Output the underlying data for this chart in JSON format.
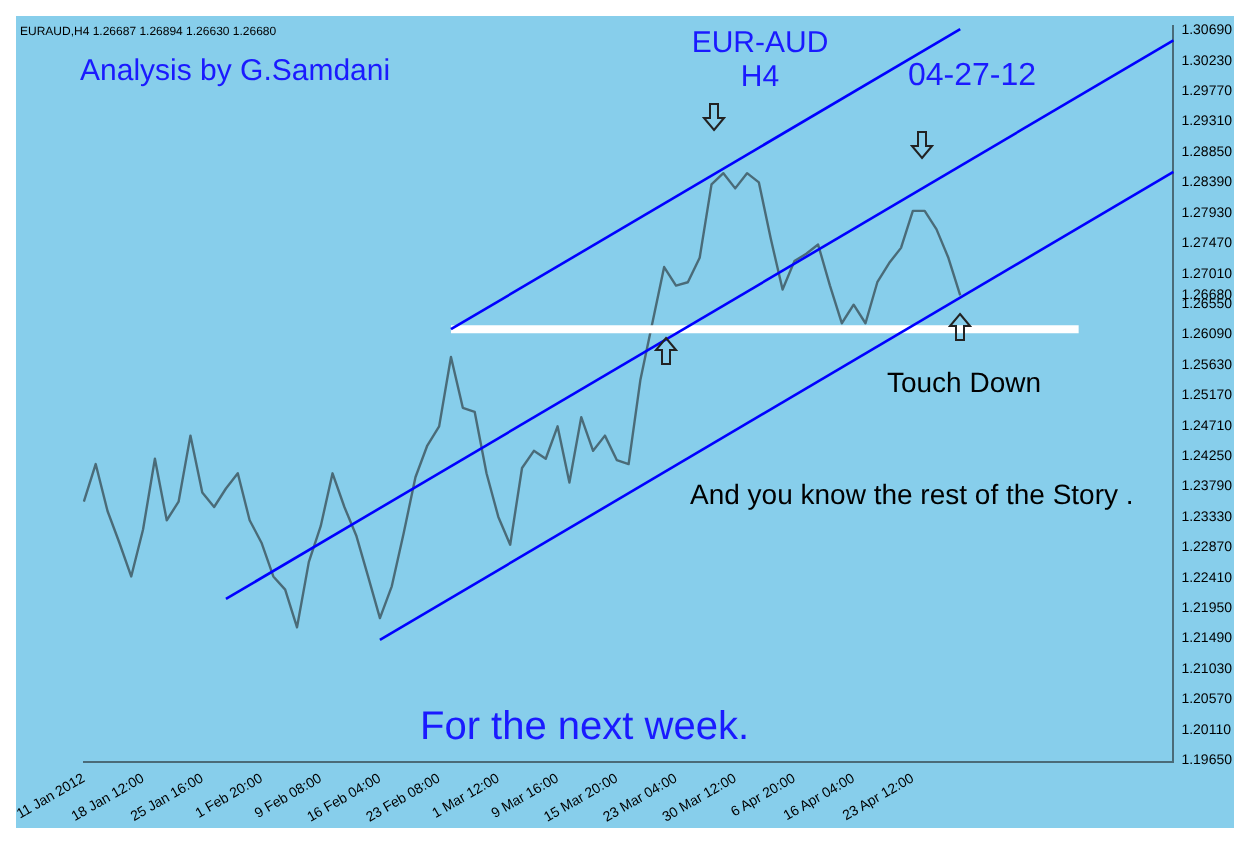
{
  "chart_data": {
    "type": "line",
    "title": "EUR-AUD",
    "subtitle": "H4",
    "annotations": [
      "EURAUD,H4 1.26687 1.26894 1.26630 1.26680",
      "Analysis by G.Samdani",
      "04-27-12",
      "Touch Down",
      "And you know the rest of the Story .",
      "For the next week."
    ],
    "categories": [
      "11 Jan 2012",
      null,
      null,
      null,
      null,
      "18 Jan 12:00",
      null,
      null,
      null,
      null,
      "25 Jan 16:00",
      null,
      null,
      null,
      null,
      "1 Feb 20:00",
      null,
      null,
      null,
      null,
      "9 Feb 08:00",
      null,
      null,
      null,
      null,
      "16 Feb 04:00",
      null,
      null,
      null,
      null,
      "23 Feb 08:00",
      null,
      null,
      null,
      null,
      "1 Mar 12:00",
      null,
      null,
      null,
      null,
      "9 Mar 16:00",
      null,
      null,
      null,
      null,
      "15 Mar 20:00",
      null,
      null,
      null,
      null,
      "23 Mar 04:00",
      null,
      null,
      null,
      null,
      "30 Mar 12:00",
      null,
      null,
      null,
      null,
      "6 Apr 20:00",
      null,
      null,
      null,
      null,
      "16 Apr 04:00",
      null,
      null,
      null,
      null,
      "23 Apr 12:00",
      null,
      null,
      null,
      null,
      null,
      null,
      null,
      null,
      null,
      null,
      null,
      null,
      null,
      null,
      null,
      null,
      null,
      null,
      null,
      null,
      null,
      null
    ],
    "series": [
      {
        "color": "#4a6b78",
        "values": [
          1.2356,
          1.2413,
          1.2342,
          1.2294,
          1.2243,
          1.2314,
          1.2421,
          1.2328,
          1.2356,
          1.2456,
          1.237,
          1.2348,
          1.2376,
          1.2399,
          1.2328,
          1.2294,
          1.2243,
          1.2223,
          1.2166,
          1.2265,
          1.2319,
          1.2399,
          1.2348,
          1.2305,
          1.2243,
          1.218,
          1.2228,
          1.2308,
          1.2393,
          1.2441,
          1.247,
          1.2575,
          1.2498,
          1.2492,
          1.2399,
          1.2333,
          1.2291,
          1.2407,
          1.2433,
          1.2421,
          1.247,
          1.2385,
          1.2484,
          1.2433,
          1.2456,
          1.2419,
          1.2413,
          1.2541,
          1.2626,
          1.2711,
          1.2683,
          1.2688,
          1.2725,
          1.2836,
          1.2853,
          1.283,
          1.2853,
          1.2839,
          1.2754,
          1.2677,
          1.272,
          1.2731,
          1.2745,
          1.2683,
          1.2626,
          1.2654,
          1.2626,
          1.2688,
          1.2717,
          1.274,
          1.2796,
          1.2796,
          1.2768,
          1.2725,
          1.2668,
          null,
          null,
          null,
          null,
          null,
          null,
          null,
          null,
          null,
          null,
          null,
          null,
          null,
          null,
          null,
          null,
          null,
          null
        ]
      },
      {
        "color": "#ffffff",
        "values": [
          null,
          null,
          null,
          null,
          null,
          null,
          null,
          null,
          null,
          null,
          null,
          null,
          null,
          null,
          null,
          null,
          null,
          null,
          null,
          null,
          null,
          null,
          null,
          null,
          null,
          null,
          null,
          null,
          null,
          null,
          null,
          1.2617,
          null,
          null,
          null,
          null,
          null,
          null,
          null,
          null,
          null,
          null,
          null,
          null,
          null,
          null,
          null,
          null,
          null,
          null,
          null,
          null,
          null,
          null,
          null,
          null,
          null,
          null,
          null,
          null,
          null,
          null,
          null,
          null,
          null,
          null,
          null,
          null,
          null,
          null,
          null,
          null,
          null,
          null,
          null,
          null,
          null,
          null,
          null,
          null,
          null,
          null,
          null,
          null,
          1.2617,
          null,
          null,
          null,
          null,
          null,
          null,
          null,
          null
        ]
      },
      {
        "color": "#0000ff",
        "values": [
          null,
          null,
          null,
          null,
          null,
          null,
          null,
          null,
          null,
          null,
          null,
          null,
          null,
          null,
          null,
          null,
          null,
          null,
          null,
          null,
          null,
          null,
          null,
          null,
          null,
          null,
          null,
          null,
          null,
          null,
          null,
          1.2617,
          null,
          null,
          null,
          null,
          null,
          null,
          null,
          null,
          null,
          null,
          null,
          null,
          null,
          null,
          null,
          null,
          null,
          null,
          null,
          null,
          null,
          null,
          null,
          null,
          null,
          null,
          null,
          null,
          null,
          null,
          null,
          null,
          null,
          null,
          null,
          null,
          null,
          null,
          null,
          null,
          null,
          null,
          1.3071,
          null,
          null,
          null,
          null,
          null,
          null,
          null,
          null,
          null,
          null,
          null,
          null,
          null,
          null,
          null,
          null,
          null,
          null
        ]
      },
      {
        "color": "#0000ff",
        "values": [
          null,
          null,
          null,
          null,
          null,
          null,
          null,
          null,
          null,
          null,
          null,
          null,
          1.2209,
          null,
          null,
          null,
          null,
          null,
          null,
          null,
          null,
          null,
          null,
          null,
          null,
          null,
          null,
          null,
          null,
          null,
          null,
          null,
          null,
          null,
          null,
          null,
          null,
          null,
          null,
          null,
          null,
          null,
          null,
          null,
          null,
          null,
          null,
          null,
          null,
          null,
          null,
          null,
          null,
          null,
          null,
          null,
          null,
          null,
          null,
          null,
          null,
          null,
          null,
          null,
          null,
          null,
          null,
          null,
          null,
          null,
          null,
          null,
          null,
          null,
          null,
          null,
          null,
          null,
          null,
          null,
          null,
          null,
          null,
          null,
          null,
          null,
          null,
          null,
          null,
          null,
          null,
          null,
          1.3054
        ]
      },
      {
        "color": "#0000ff",
        "values": [
          null,
          null,
          null,
          null,
          null,
          null,
          null,
          null,
          null,
          null,
          null,
          null,
          null,
          null,
          null,
          null,
          null,
          null,
          null,
          null,
          null,
          null,
          null,
          null,
          null,
          1.2147,
          null,
          null,
          null,
          null,
          null,
          null,
          null,
          null,
          null,
          null,
          null,
          null,
          null,
          null,
          null,
          null,
          null,
          null,
          null,
          null,
          null,
          null,
          null,
          null,
          null,
          null,
          null,
          null,
          null,
          null,
          null,
          null,
          null,
          null,
          null,
          null,
          null,
          null,
          null,
          null,
          null,
          null,
          null,
          null,
          null,
          null,
          null,
          null,
          null,
          null,
          null,
          null,
          null,
          null,
          null,
          null,
          null,
          null,
          null,
          null,
          null,
          null,
          null,
          null,
          null,
          null,
          1.2855
        ]
      }
    ],
    "ylim": [
      1.1962,
      1.3075
    ],
    "yticks": [
      {
        "value": 1.3069,
        "label": "1.30690"
      },
      {
        "value": 1.3023,
        "label": "1.30230"
      },
      {
        "value": 1.2977,
        "label": "1.29770"
      },
      {
        "value": 1.2931,
        "label": "1.29310"
      },
      {
        "value": 1.2885,
        "label": "1.28850"
      },
      {
        "value": 1.2839,
        "label": "1.28390"
      },
      {
        "value": 1.2793,
        "label": "1.27930"
      },
      {
        "value": 1.2747,
        "label": "1.27470"
      },
      {
        "value": 1.2701,
        "label": "1.27010"
      },
      {
        "value": 1.2668,
        "label": "1.26680"
      },
      {
        "value": 1.2655,
        "label": "1.26550"
      },
      {
        "value": 1.2609,
        "label": "1.26090"
      },
      {
        "value": 1.2563,
        "label": "1.25630"
      },
      {
        "value": 1.2517,
        "label": "1.25170"
      },
      {
        "value": 1.2471,
        "label": "1.24710"
      },
      {
        "value": 1.2425,
        "label": "1.24250"
      },
      {
        "value": 1.2379,
        "label": "1.23790"
      },
      {
        "value": 1.2333,
        "label": "1.23330"
      },
      {
        "value": 1.2287,
        "label": "1.22870"
      },
      {
        "value": 1.2241,
        "label": "1.22410"
      },
      {
        "value": 1.2195,
        "label": "1.21950"
      },
      {
        "value": 1.2149,
        "label": "1.21490"
      },
      {
        "value": 1.2103,
        "label": "1.21030"
      },
      {
        "value": 1.2057,
        "label": "1.20570"
      },
      {
        "value": 1.2011,
        "label": "1.20110"
      },
      {
        "value": 1.1965,
        "label": "1.19650"
      }
    ],
    "grid": false,
    "legend": false,
    "marker": "none",
    "line_style": "solid"
  }
}
